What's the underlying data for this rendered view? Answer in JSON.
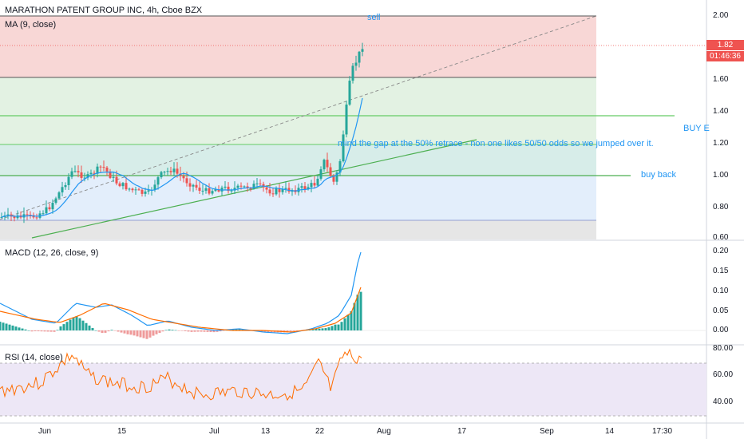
{
  "header": {
    "title": "MARATHON PATENT GROUP INC, 4h, Cboe BZX",
    "ma_label": "MA (9, close)",
    "macd_label": "MACD (12, 26, close, 9)",
    "rsi_label": "RSI (14, close)"
  },
  "annotations": {
    "sell": "sell",
    "buy_back": "buy back",
    "buy_edge": "BUY E",
    "mind_gap": "mind the gap at the 50% retrace - non one likes 50/50 odds so we jumped over it."
  },
  "price_axis": [
    "2.00",
    "1.80",
    "1.60",
    "1.40",
    "1.20",
    "1.00",
    "0.80",
    "0.60"
  ],
  "macd_axis": [
    "0.20",
    "0.15",
    "0.10",
    "0.05",
    "0.00"
  ],
  "rsi_axis": [
    "80.00",
    "60.00",
    "40.00"
  ],
  "badges": {
    "price": "1.82",
    "countdown": "01:46:36",
    "price_color": "#ef5350",
    "countdown_color": "#ef5350"
  },
  "date_axis": [
    "Jun",
    "15",
    "Jul",
    "13",
    "22",
    "Aug",
    "17",
    "Sep",
    "14",
    "17:30"
  ],
  "colors": {
    "up": "#26a69a",
    "down": "#ef5350",
    "ma": "#2196f3",
    "trendline": "#4caf50",
    "macd_line": "#2196f3",
    "signal_line": "#ff6d00",
    "rsi_line": "#ff6d00",
    "rsi_band": "#ede7f6",
    "zone_red": "#f8d7d6",
    "zone_green": "#e3f2e3",
    "zone_teal": "#d7ede9",
    "zone_blue": "#e3eefb",
    "zone_grey": "#e0e0e0"
  },
  "chart_data": {
    "type": "candlestick",
    "symbol": "MARATHON PATENT GROUP INC",
    "interval": "4h",
    "exchange": "Cboe BZX",
    "x_ticks": [
      "Jun",
      "15",
      "Jul",
      "13",
      "22",
      "Aug",
      "17",
      "Sep",
      "14",
      "17:30"
    ],
    "price_ylim": [
      0.6,
      2.03
    ],
    "last_price": 1.82,
    "horizontal_levels": [
      2.0,
      1.62,
      1.38,
      1.19,
      1.0,
      0.72
    ],
    "indicators": [
      "MA (9, close)",
      "MACD (12, 26, close, 9)",
      "RSI (14, close)"
    ],
    "macd_ylim": [
      -0.03,
      0.22
    ],
    "rsi_ylim": [
      25,
      82
    ],
    "rsi_band": [
      30,
      70
    ]
  }
}
